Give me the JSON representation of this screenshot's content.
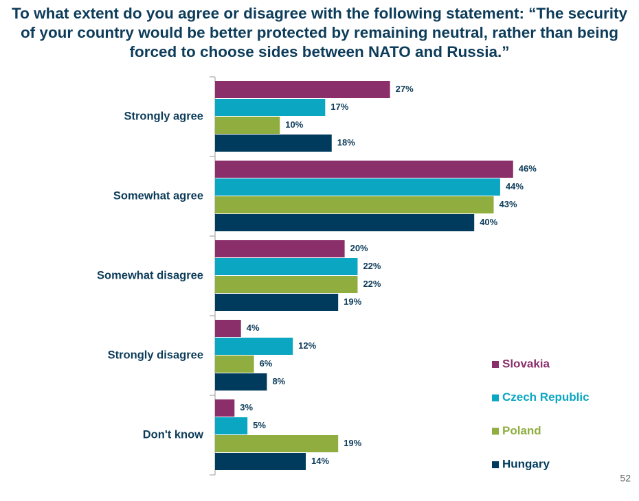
{
  "chart_data": {
    "type": "bar",
    "orientation": "horizontal",
    "title": "To what extent do you agree or disagree with the following statement: “The security of your country would be better protected by remaining neutral, rather than being forced to choose sides between NATO and Russia.”",
    "categories": [
      "Strongly agree",
      "Somewhat agree",
      "Somewhat disagree",
      "Strongly disagree",
      "Don't know"
    ],
    "series": [
      {
        "name": "Slovakia",
        "color": "#8b2f6b",
        "values": [
          27,
          46,
          20,
          4,
          3
        ],
        "value_labels": [
          "27%",
          "46%",
          "20%",
          "4%",
          "3%"
        ]
      },
      {
        "name": "Czech Republic",
        "color": "#0aa6c2",
        "values": [
          17,
          44,
          22,
          12,
          5
        ],
        "value_labels": [
          "17%",
          "44%",
          "22%",
          "12%",
          "5%"
        ]
      },
      {
        "name": "Poland",
        "color": "#8fae3f",
        "values": [
          10,
          43,
          22,
          6,
          19
        ],
        "value_labels": [
          "10%",
          "43%",
          "22%",
          "6%",
          "19%"
        ]
      },
      {
        "name": "Hungary",
        "color": "#003a5c",
        "values": [
          18,
          40,
          19,
          8,
          14
        ],
        "value_labels": [
          "18%",
          "40%",
          "19%",
          "8%",
          "14%"
        ]
      }
    ],
    "legend": "lower right",
    "page_number": "52"
  }
}
